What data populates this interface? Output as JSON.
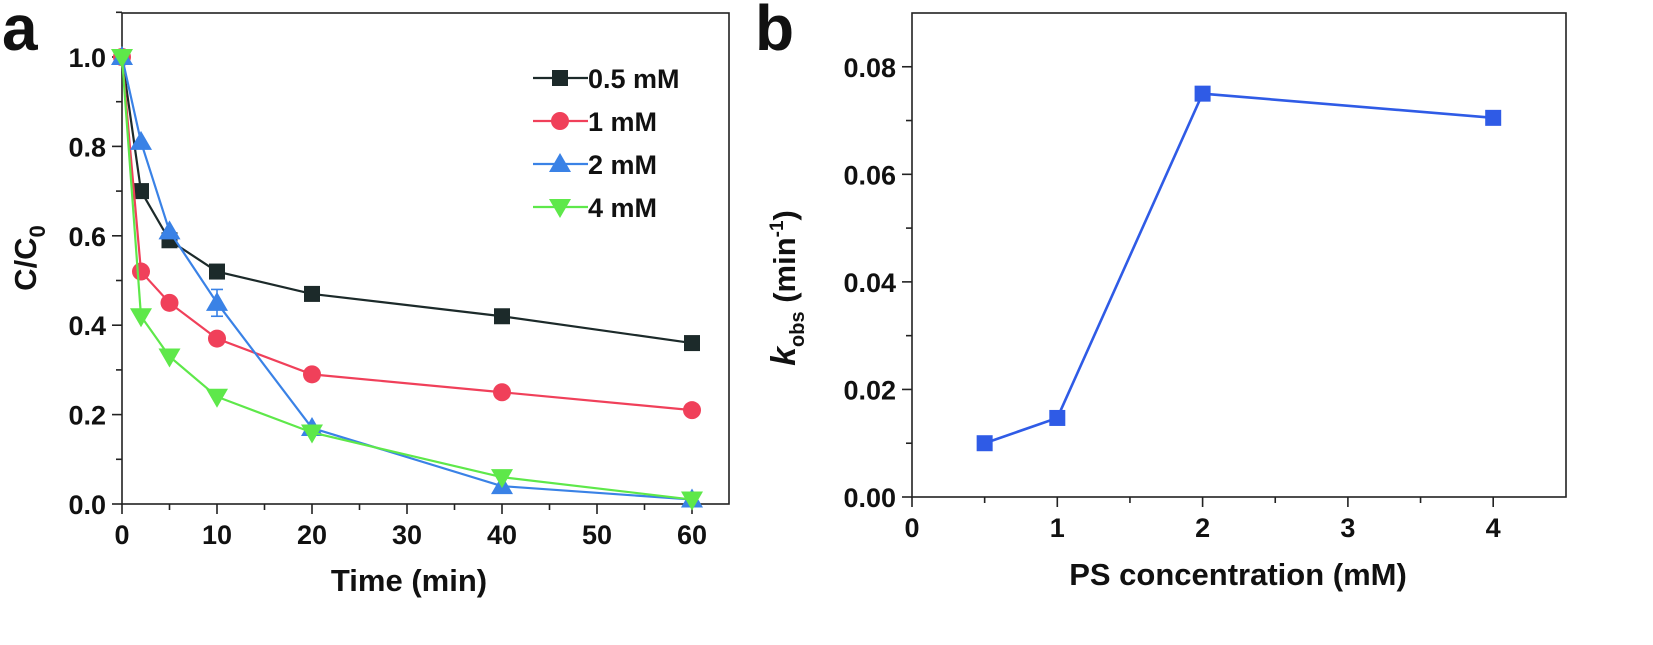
{
  "chart_data": [
    {
      "panel": "a",
      "type": "line",
      "xlabel": "Time (min)",
      "ylabel": {
        "main": "C/C",
        "sub": "0"
      },
      "xlim": [
        0,
        65
      ],
      "ylim": [
        0,
        1.1
      ],
      "xticks": [
        "0",
        "10",
        "20",
        "30",
        "40",
        "50",
        "60"
      ],
      "yticks": [
        "0.0",
        "0.2",
        "0.4",
        "0.6",
        "0.8",
        "1.0"
      ],
      "legend_position": "top-right",
      "series": [
        {
          "name": "0.5 mM",
          "color": "#1c2a2a",
          "marker": "square",
          "x": [
            0,
            2,
            5,
            10,
            20,
            40,
            60
          ],
          "y": [
            1.0,
            0.7,
            0.59,
            0.52,
            0.47,
            0.42,
            0.36
          ]
        },
        {
          "name": "1 mM",
          "color": "#f0405a",
          "marker": "circle",
          "x": [
            0,
            2,
            5,
            10,
            20,
            40,
            60
          ],
          "y": [
            1.0,
            0.52,
            0.45,
            0.37,
            0.29,
            0.25,
            0.21
          ]
        },
        {
          "name": "2 mM",
          "color": "#3a82e6",
          "marker": "triangle-up",
          "x": [
            0,
            2,
            5,
            10,
            20,
            40,
            60
          ],
          "y": [
            1.0,
            0.81,
            0.61,
            0.45,
            0.17,
            0.04,
            0.01
          ]
        },
        {
          "name": "4 mM",
          "color": "#5ee84a",
          "marker": "triangle-down",
          "x": [
            0,
            2,
            5,
            10,
            20,
            40,
            60
          ],
          "y": [
            1.0,
            0.42,
            0.33,
            0.24,
            0.16,
            0.06,
            0.01
          ]
        }
      ],
      "error_bars": [
        {
          "series": "2 mM",
          "x": 10,
          "y": 0.45,
          "err": 0.03
        }
      ]
    },
    {
      "panel": "b",
      "type": "line",
      "xlabel": "PS concentration (mM)",
      "ylabel": {
        "italic": "k",
        "sub": "obs",
        "main": " (min",
        "sup": "-1",
        "end": ")"
      },
      "xlim": [
        0,
        4.5
      ],
      "ylim": [
        0,
        0.09
      ],
      "xticks": [
        "0",
        "1",
        "2",
        "3",
        "4"
      ],
      "yticks": [
        "0.00",
        "0.02",
        "0.04",
        "0.06",
        "0.08"
      ],
      "series": [
        {
          "color": "#2f5be6",
          "marker": "square",
          "x": [
            0.5,
            1,
            2,
            4
          ],
          "y": [
            0.01,
            0.0147,
            0.075,
            0.0705
          ]
        }
      ]
    }
  ]
}
